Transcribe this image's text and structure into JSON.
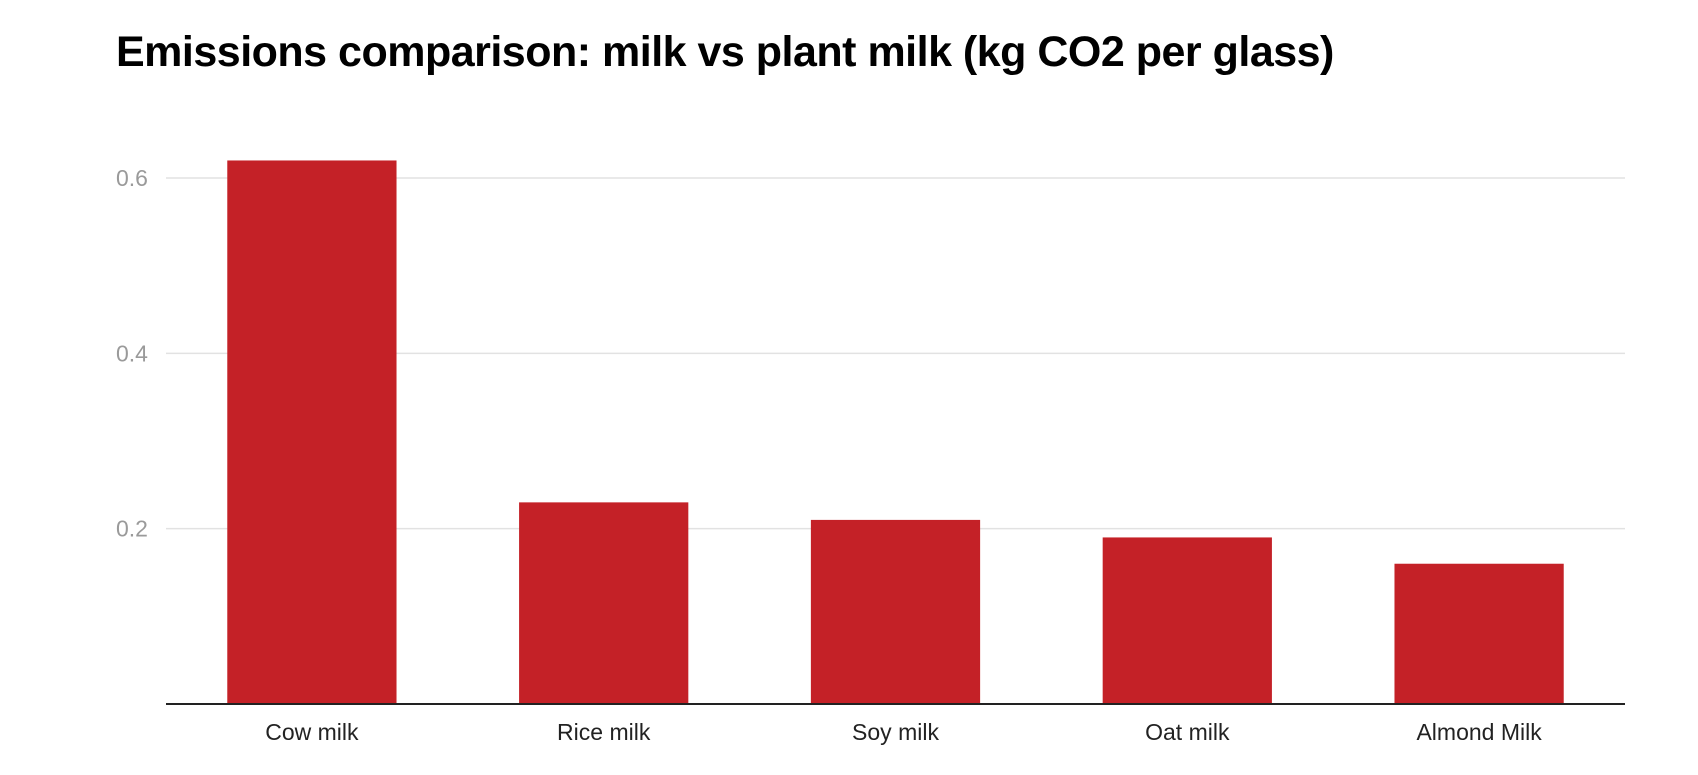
{
  "chart_data": {
    "type": "bar",
    "title": "Emissions comparison: milk vs plant milk (kg CO2 per glass)",
    "categories": [
      "Cow milk",
      "Rice milk",
      "Soy milk",
      "Oat milk",
      "Almond Milk"
    ],
    "values": [
      0.62,
      0.23,
      0.21,
      0.19,
      0.16
    ],
    "xlabel": "",
    "ylabel": "",
    "ylim": [
      0,
      0.62
    ],
    "yticks": [
      0.2,
      0.4,
      0.6
    ],
    "ytick_labels": [
      "0.2",
      "0.4",
      "0.6"
    ],
    "grid": true,
    "legend": "none",
    "bar_color": "#c42127",
    "grid_color": "#e2e2e2",
    "axis_color": "#222222"
  }
}
